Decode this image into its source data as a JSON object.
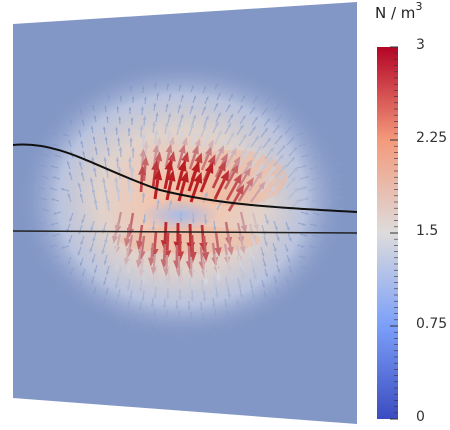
{
  "colorbar": {
    "unit_base": "N / m",
    "unit_exponent": "3",
    "ticks": [
      {
        "label": "3",
        "value": 3
      },
      {
        "label": "2.25",
        "value": 2.25
      },
      {
        "label": "1.5",
        "value": 1.5
      },
      {
        "label": "0.75",
        "value": 0.75
      },
      {
        "label": "0",
        "value": 0
      }
    ],
    "range": [
      0,
      3
    ],
    "colormap": "cool-to-warm",
    "colors": {
      "low": "#3b4cc0",
      "mid": "#dcdcdc",
      "high": "#b40426"
    }
  }
}
